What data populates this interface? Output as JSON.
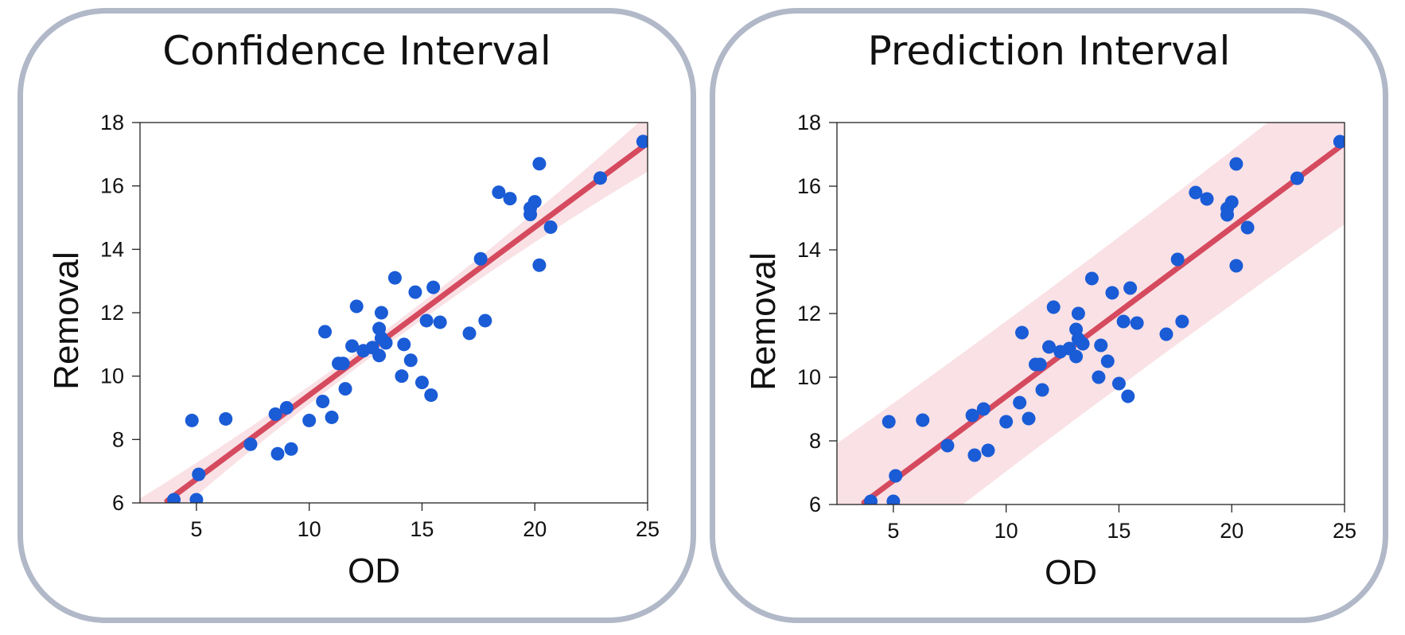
{
  "colors": {
    "points": "#1a5bd6",
    "fit_line": "#d54a5e",
    "band": "#f4c8cf",
    "frame": "#b1b8c8"
  },
  "chart_data": [
    {
      "type": "scatter",
      "title": "Confidence Interval",
      "xlabel": "OD",
      "ylabel": "Removal",
      "xlim": [
        2.5,
        25
      ],
      "ylim": [
        6,
        18
      ],
      "xticks": [
        5,
        10,
        15,
        20,
        25
      ],
      "yticks": [
        6,
        8,
        10,
        12,
        14,
        16,
        18
      ],
      "grid": false,
      "fit": {
        "slope": 0.53,
        "intercept": 4.1
      },
      "band": {
        "type": "confidence",
        "half_width_center": 0.25,
        "half_width_edge": 0.9,
        "x_center": 12.8
      },
      "points": [
        [
          4.0,
          6.1
        ],
        [
          5.0,
          6.1
        ],
        [
          5.1,
          6.9
        ],
        [
          4.8,
          8.6
        ],
        [
          6.3,
          8.65
        ],
        [
          7.4,
          7.85
        ],
        [
          8.5,
          8.8
        ],
        [
          8.6,
          7.55
        ],
        [
          9.0,
          9.0
        ],
        [
          9.2,
          7.7
        ],
        [
          10.0,
          8.6
        ],
        [
          10.6,
          9.2
        ],
        [
          10.7,
          11.4
        ],
        [
          11.0,
          8.7
        ],
        [
          11.3,
          10.4
        ],
        [
          11.5,
          10.4
        ],
        [
          11.6,
          9.6
        ],
        [
          11.9,
          10.95
        ],
        [
          12.1,
          12.2
        ],
        [
          12.4,
          10.8
        ],
        [
          12.8,
          10.9
        ],
        [
          13.1,
          10.65
        ],
        [
          13.1,
          11.5
        ],
        [
          13.2,
          12.0
        ],
        [
          13.2,
          11.2
        ],
        [
          13.4,
          11.05
        ],
        [
          13.8,
          13.1
        ],
        [
          14.1,
          10.0
        ],
        [
          14.2,
          11.0
        ],
        [
          14.5,
          10.5
        ],
        [
          14.7,
          12.65
        ],
        [
          15.0,
          9.8
        ],
        [
          15.2,
          11.75
        ],
        [
          15.4,
          9.4
        ],
        [
          15.5,
          12.8
        ],
        [
          15.8,
          11.7
        ],
        [
          17.1,
          11.35
        ],
        [
          17.6,
          13.7
        ],
        [
          17.8,
          11.75
        ],
        [
          18.4,
          15.8
        ],
        [
          18.9,
          15.6
        ],
        [
          19.8,
          15.1
        ],
        [
          19.8,
          15.3
        ],
        [
          20.0,
          15.5
        ],
        [
          20.2,
          16.7
        ],
        [
          20.2,
          13.5
        ],
        [
          20.7,
          14.7
        ],
        [
          22.9,
          16.25
        ],
        [
          24.8,
          17.4
        ]
      ]
    },
    {
      "type": "scatter",
      "title": "Prediction Interval",
      "xlabel": "OD",
      "ylabel": "Removal",
      "xlim": [
        2.5,
        25
      ],
      "ylim": [
        6,
        18
      ],
      "xticks": [
        5,
        10,
        15,
        20,
        25
      ],
      "yticks": [
        6,
        8,
        10,
        12,
        14,
        16,
        18
      ],
      "grid": false,
      "fit": {
        "slope": 0.53,
        "intercept": 4.1
      },
      "band": {
        "type": "prediction",
        "half_width_center": 2.35,
        "half_width_edge": 2.55,
        "x_center": 12.8
      },
      "points": [
        [
          4.0,
          6.1
        ],
        [
          5.0,
          6.1
        ],
        [
          5.1,
          6.9
        ],
        [
          4.8,
          8.6
        ],
        [
          6.3,
          8.65
        ],
        [
          7.4,
          7.85
        ],
        [
          8.5,
          8.8
        ],
        [
          8.6,
          7.55
        ],
        [
          9.0,
          9.0
        ],
        [
          9.2,
          7.7
        ],
        [
          10.0,
          8.6
        ],
        [
          10.6,
          9.2
        ],
        [
          10.7,
          11.4
        ],
        [
          11.0,
          8.7
        ],
        [
          11.3,
          10.4
        ],
        [
          11.5,
          10.4
        ],
        [
          11.6,
          9.6
        ],
        [
          11.9,
          10.95
        ],
        [
          12.1,
          12.2
        ],
        [
          12.4,
          10.8
        ],
        [
          12.8,
          10.9
        ],
        [
          13.1,
          10.65
        ],
        [
          13.1,
          11.5
        ],
        [
          13.2,
          12.0
        ],
        [
          13.2,
          11.2
        ],
        [
          13.4,
          11.05
        ],
        [
          13.8,
          13.1
        ],
        [
          14.1,
          10.0
        ],
        [
          14.2,
          11.0
        ],
        [
          14.5,
          10.5
        ],
        [
          14.7,
          12.65
        ],
        [
          15.0,
          9.8
        ],
        [
          15.2,
          11.75
        ],
        [
          15.4,
          9.4
        ],
        [
          15.5,
          12.8
        ],
        [
          15.8,
          11.7
        ],
        [
          17.1,
          11.35
        ],
        [
          17.6,
          13.7
        ],
        [
          17.8,
          11.75
        ],
        [
          18.4,
          15.8
        ],
        [
          18.9,
          15.6
        ],
        [
          19.8,
          15.1
        ],
        [
          19.8,
          15.3
        ],
        [
          20.0,
          15.5
        ],
        [
          20.2,
          16.7
        ],
        [
          20.2,
          13.5
        ],
        [
          20.7,
          14.7
        ],
        [
          22.9,
          16.25
        ],
        [
          24.8,
          17.4
        ]
      ]
    }
  ]
}
